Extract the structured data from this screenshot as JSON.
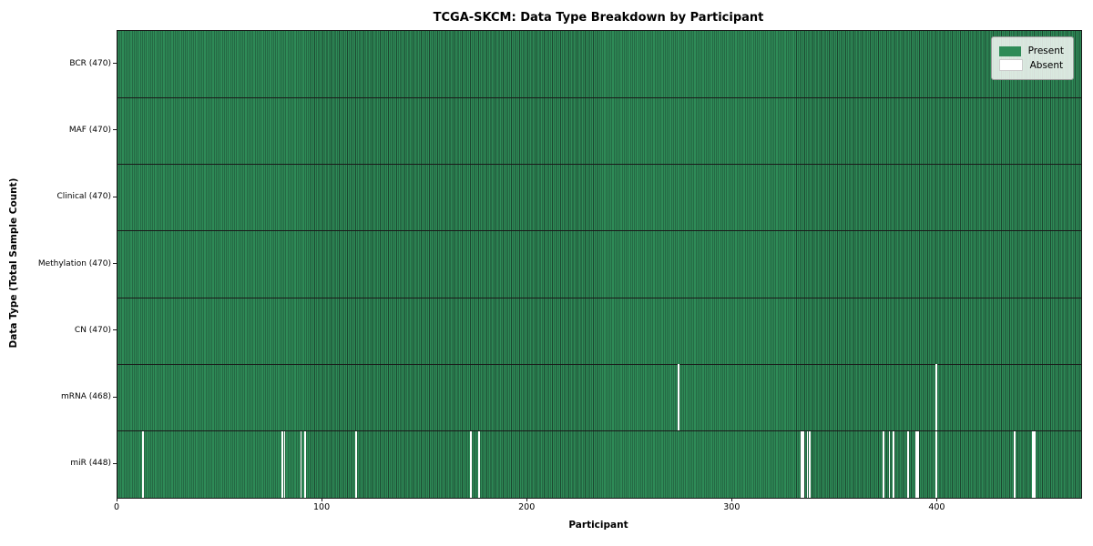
{
  "chart_data": {
    "type": "heatmap",
    "title": "TCGA-SKCM: Data Type Breakdown by Participant",
    "xlabel": "Participant",
    "ylabel": "Data Type (Total Sample Count)",
    "x_ticks": [
      0,
      100,
      200,
      300,
      400
    ],
    "xlim": [
      0,
      470
    ],
    "n_participants": 470,
    "legend": {
      "present_label": "Present",
      "absent_label": "Absent"
    },
    "colors": {
      "present": "#2e8b57",
      "present_edge": "#1c4730",
      "absent": "#ffffff",
      "separator": "#1a1a1a"
    },
    "rows": [
      {
        "label": "BCR (470)",
        "name": "BCR",
        "count": 470,
        "absent": []
      },
      {
        "label": "MAF (470)",
        "name": "MAF",
        "count": 470,
        "absent": []
      },
      {
        "label": "Clinical (470)",
        "name": "Clinical",
        "count": 470,
        "absent": []
      },
      {
        "label": "Methylation (470)",
        "name": "Methylation",
        "count": 470,
        "absent": []
      },
      {
        "label": "CN (470)",
        "name": "CN",
        "count": 470,
        "absent": []
      },
      {
        "label": "mRNA (468)",
        "name": "mRNA",
        "count": 468,
        "absent": [
          273,
          399
        ]
      },
      {
        "label": "miR (448)",
        "name": "miR",
        "count": 448,
        "absent": [
          12,
          80,
          81,
          89,
          91,
          116,
          172,
          176,
          333,
          334,
          336,
          337,
          373,
          376,
          378,
          385,
          389,
          390,
          399,
          437,
          446,
          447
        ]
      }
    ]
  }
}
